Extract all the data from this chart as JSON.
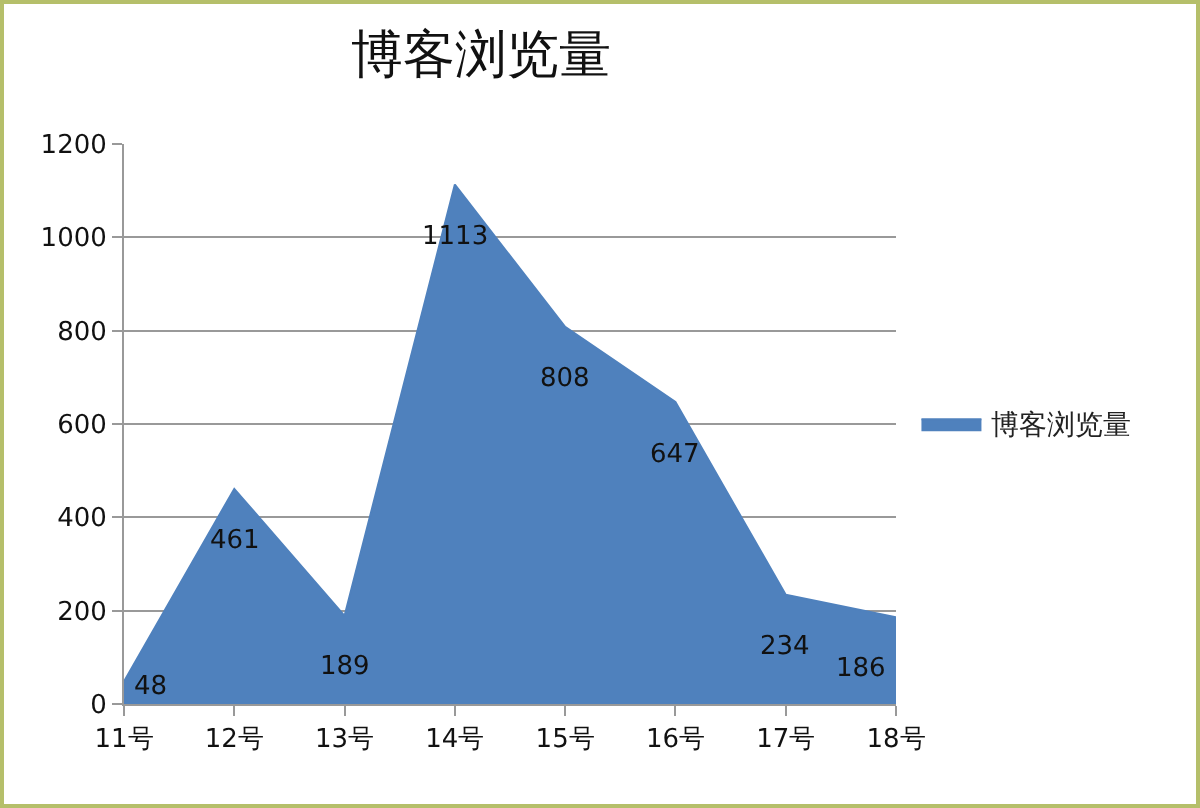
{
  "chart_data": {
    "type": "area",
    "title": "博客浏览量",
    "categories": [
      "11号",
      "12号",
      "13号",
      "14号",
      "15号",
      "16号",
      "17号",
      "18号"
    ],
    "series": [
      {
        "name": "博客浏览量",
        "color": "#4f81bd",
        "values": [
          48,
          461,
          189,
          1113,
          808,
          647,
          234,
          186
        ]
      }
    ],
    "ylim": [
      0,
      1200
    ],
    "yticks": [
      0,
      200,
      400,
      600,
      800,
      1000,
      1200
    ],
    "grid": "y",
    "legend": "right",
    "data_labels": true
  }
}
